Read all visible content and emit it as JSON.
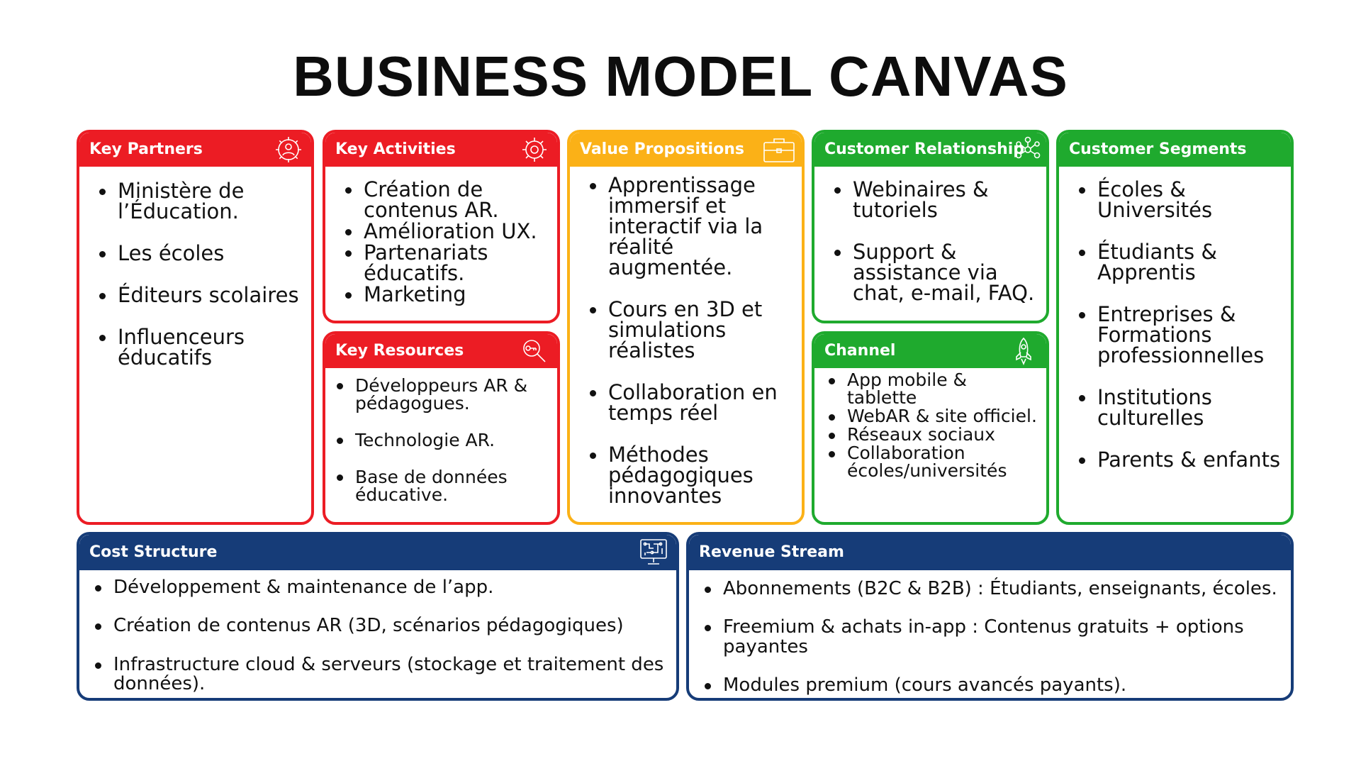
{
  "title": "BUSINESS MODEL CANVAS",
  "colors": {
    "red": "#ec1c24",
    "yellow": "#fbb117",
    "green": "#1faa2e",
    "navy": "#163c78"
  },
  "blocks": {
    "key_partners": {
      "title": "Key Partners",
      "icon": "people-gear-icon",
      "items": [
        "Ministère de l’Éducation.",
        "Les écoles",
        "Éditeurs scolaires",
        "Influenceurs éducatifs"
      ]
    },
    "key_activities": {
      "title": "Key Activities",
      "icon": "gear-icon",
      "items": [
        "Création de contenus AR.",
        "Amélioration UX.",
        "Partenariats éducatifs.",
        "Marketing"
      ]
    },
    "key_resources": {
      "title": "Key Resources",
      "icon": "magnifier-key-icon",
      "items": [
        "Développeurs AR & pédagogues.",
        "Technologie AR.",
        "Base de données éducative."
      ]
    },
    "value_propositions": {
      "title": "Value Propositions",
      "icon": "briefcase-icon",
      "items": [
        "Apprentissage immersif et interactif via la réalité augmentée.",
        "Cours en 3D et simulations réalistes",
        "Collaboration en temps réel",
        "Méthodes pédagogiques innovantes"
      ]
    },
    "customer_relationship": {
      "title": "Customer Relationship",
      "icon": "network-people-icon",
      "items": [
        "Webinaires & tutoriels",
        "Support & assistance via chat, e-mail, FAQ."
      ]
    },
    "channel": {
      "title": "Channel",
      "icon": "rocket-icon",
      "items": [
        "App mobile & tablette",
        "WebAR & site officiel.",
        "Réseaux sociaux",
        "Collaboration écoles/universités"
      ]
    },
    "customer_segments": {
      "title": "Customer Segments",
      "items": [
        "Écoles & Universités",
        "Étudiants & Apprentis",
        "Entreprises & Formations professionnelles",
        "Institutions culturelles",
        "Parents & enfants"
      ]
    },
    "cost_structure": {
      "title": "Cost Structure",
      "icon": "circuit-monitor-icon",
      "items": [
        "Développement & maintenance de l’app.",
        "Création de contenus AR (3D, scénarios pédagogiques)",
        "Infrastructure cloud & serveurs (stockage et traitement des données)."
      ]
    },
    "revenue_stream": {
      "title": "Revenue Stream",
      "items": [
        "Abonnements (B2C & B2B) : Étudiants, enseignants, écoles.",
        "Freemium & achats in-app :  Contenus gratuits + options payantes",
        "Modules premium (cours avancés payants)."
      ]
    }
  }
}
